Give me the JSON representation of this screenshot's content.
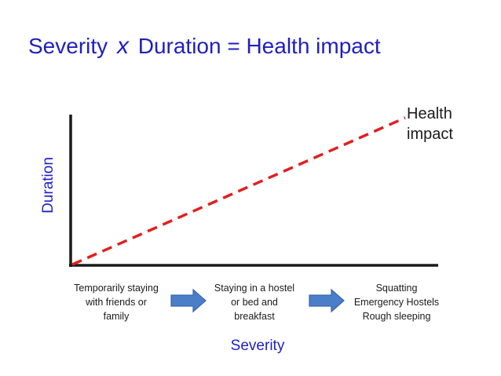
{
  "title": {
    "part1": "Severity",
    "operator": "x",
    "part2": "Duration = Health impact"
  },
  "y_axis_label": "Duration",
  "x_axis_label": "Severity",
  "line_label": {
    "line1": "Health",
    "line2": "impact"
  },
  "stages": [
    {
      "lines": [
        "Temporarily staying",
        "with friends or",
        "family"
      ]
    },
    {
      "lines": [
        "Staying in a hostel",
        "or bed and",
        "breakfast"
      ]
    },
    {
      "lines": [
        "Squatting",
        "Emergency Hostels",
        "Rough sleeping"
      ]
    }
  ],
  "colors": {
    "title": "#1f1fbf",
    "axis_labels": "#1f1fbf",
    "axes": "#1a1a1a",
    "impact_line": "#e02020",
    "arrow_fill": "#4a7ec8",
    "arrow_stroke": "#3a66a8"
  }
}
